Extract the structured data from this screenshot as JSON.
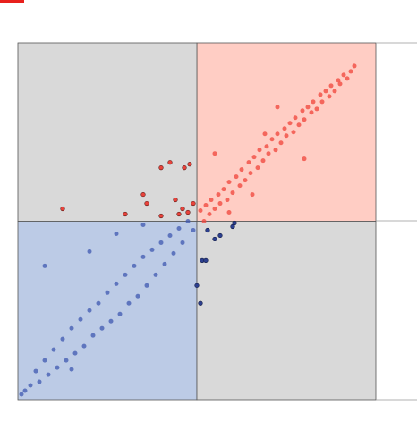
{
  "chart_data": {
    "type": "scatter",
    "xlim": [
      -1,
      1
    ],
    "ylim": [
      -1,
      1
    ],
    "quadrant_colors": [
      "#ffcdc4",
      "#d9d9d9",
      "#bccbe6",
      "#d9d9d9"
    ],
    "series": [
      {
        "color": "#f0433a",
        "x": [
          0.02,
          0.04,
          0.05,
          0.07,
          0.08,
          0.1,
          0.12,
          0.13,
          0.15,
          0.17,
          0.18,
          0.2,
          0.22,
          0.24,
          0.25,
          0.27,
          0.29,
          0.3,
          0.32,
          0.34,
          0.35,
          0.37,
          0.39,
          0.4,
          0.42,
          0.44,
          0.45,
          0.47,
          0.49,
          0.5,
          0.52,
          0.54,
          0.55,
          0.57,
          0.59,
          0.6,
          0.62,
          0.64,
          0.65,
          0.67,
          0.69,
          0.7,
          0.72,
          0.74,
          0.75,
          0.77,
          0.79,
          0.8,
          0.82,
          0.84,
          0.86,
          0.88,
          0.38,
          0.1,
          0.18,
          0.31,
          0.45,
          0.6
        ],
        "values": [
          0.06,
          0.0,
          0.09,
          0.04,
          0.12,
          0.07,
          0.15,
          0.1,
          0.18,
          0.12,
          0.22,
          0.16,
          0.25,
          0.2,
          0.29,
          0.23,
          0.33,
          0.27,
          0.36,
          0.3,
          0.4,
          0.34,
          0.42,
          0.38,
          0.46,
          0.4,
          0.49,
          0.44,
          0.52,
          0.48,
          0.55,
          0.5,
          0.58,
          0.54,
          0.62,
          0.57,
          0.64,
          0.61,
          0.67,
          0.63,
          0.71,
          0.67,
          0.73,
          0.7,
          0.76,
          0.73,
          0.79,
          0.77,
          0.82,
          0.8,
          0.84,
          0.87,
          0.49,
          0.38,
          0.05,
          0.15,
          0.64,
          0.35
        ]
      },
      {
        "color": "#3f58b0",
        "x": [
          -0.02,
          -0.05,
          -0.08,
          -0.1,
          -0.13,
          -0.15,
          -0.18,
          -0.2,
          -0.23,
          -0.25,
          -0.28,
          -0.3,
          -0.33,
          -0.35,
          -0.38,
          -0.4,
          -0.43,
          -0.45,
          -0.48,
          -0.5,
          -0.53,
          -0.55,
          -0.58,
          -0.6,
          -0.63,
          -0.65,
          -0.68,
          -0.7,
          -0.73,
          -0.75,
          -0.78,
          -0.8,
          -0.83,
          -0.85,
          -0.88,
          -0.9,
          -0.93,
          -0.96,
          -0.98,
          -0.85,
          -0.6,
          -0.45,
          -0.3,
          -0.7
        ],
        "values": [
          -0.05,
          0.0,
          -0.12,
          -0.04,
          -0.18,
          -0.08,
          -0.24,
          -0.12,
          -0.3,
          -0.16,
          -0.36,
          -0.2,
          -0.42,
          -0.25,
          -0.46,
          -0.3,
          -0.52,
          -0.35,
          -0.56,
          -0.4,
          -0.6,
          -0.46,
          -0.64,
          -0.5,
          -0.7,
          -0.55,
          -0.74,
          -0.6,
          -0.78,
          -0.66,
          -0.82,
          -0.72,
          -0.86,
          -0.78,
          -0.9,
          -0.84,
          -0.92,
          -0.95,
          -0.97,
          -0.25,
          -0.17,
          -0.07,
          -0.02,
          -0.83
        ]
      },
      {
        "color": "#e8433c",
        "edgecolor": "#5a1a16",
        "x": [
          -0.2,
          -0.15,
          -0.07,
          -0.04,
          -0.75,
          -0.3,
          -0.28,
          -0.12,
          -0.1,
          -0.2,
          -0.4,
          -0.05,
          -0.02,
          -0.08
        ],
        "values": [
          0.3,
          0.33,
          0.3,
          0.32,
          0.07,
          0.15,
          0.1,
          0.12,
          0.04,
          0.03,
          0.04,
          0.05,
          0.1,
          0.07
        ]
      },
      {
        "color": "#2c3f8f",
        "edgecolor": "#111a40",
        "x": [
          0.02,
          0.03,
          0.05,
          0.1,
          0.2,
          0.13,
          0.0,
          0.06,
          0.21
        ],
        "values": [
          -0.46,
          -0.22,
          -0.22,
          -0.1,
          -0.03,
          -0.08,
          -0.36,
          -0.05,
          -0.01
        ]
      }
    ]
  }
}
